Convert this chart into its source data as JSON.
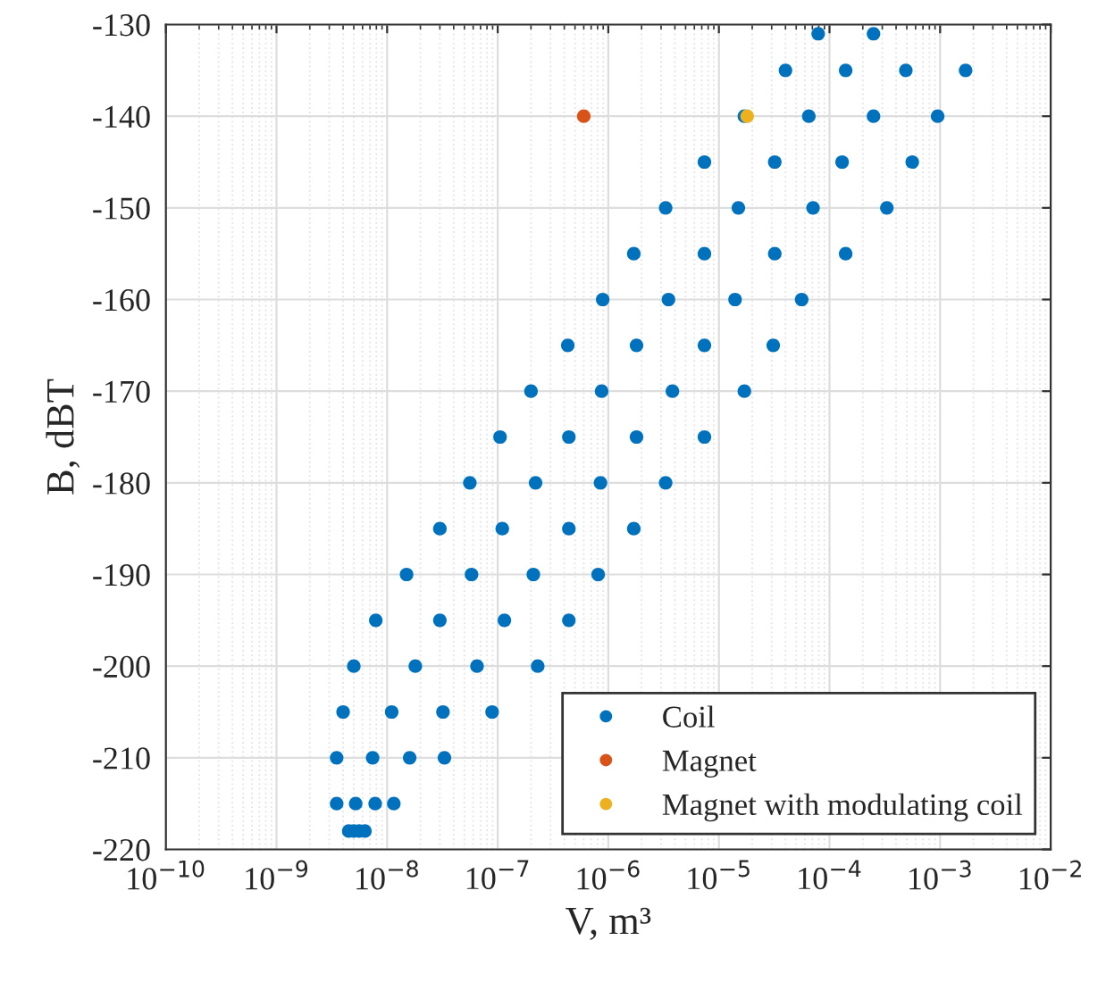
{
  "chart_data": {
    "type": "scatter",
    "xlabel": "V, m³",
    "ylabel": "B, dBT",
    "log": "x",
    "grid": true,
    "legend": "bottom right",
    "marker": "circle",
    "xlim": [
      1e-10,
      0.01
    ],
    "xticks": [
      {
        "value": 1e-10,
        "label": "10$^{−10}$"
      },
      {
        "value": 1e-09,
        "label": "10$^{−9}$"
      },
      {
        "value": 1e-08,
        "label": "10$^{−8}$"
      },
      {
        "value": 1e-07,
        "label": "10$^{−7}$"
      },
      {
        "value": 1e-06,
        "label": "10$^{−6}$"
      },
      {
        "value": 1e-05,
        "label": "10$^{−5}$"
      },
      {
        "value": 0.0001,
        "label": "10$^{−4}$"
      },
      {
        "value": 0.001,
        "label": "10$^{−3}$"
      },
      {
        "value": 0.01,
        "label": "10$^{−2}$"
      }
    ],
    "ylim": [
      -220,
      -130
    ],
    "yticks": [
      -220,
      -210,
      -200,
      -190,
      -180,
      -170,
      -160,
      -150,
      -140,
      -130
    ],
    "series": [
      {
        "name": "Coil",
        "color": "#0072bd",
        "x": [
          4.5e-09,
          5e-09,
          5.6e-09,
          6.3e-09,
          3.5e-09,
          5.2e-09,
          7.8e-09,
          1.15e-08,
          3.5e-09,
          7.4e-09,
          1.6e-08,
          3.3e-08,
          4e-09,
          1.1e-08,
          3.2e-08,
          8.9e-08,
          5e-09,
          1.8e-08,
          6.5e-08,
          2.3e-07,
          7.9e-09,
          3e-08,
          1.15e-07,
          4.4e-07,
          1.5e-08,
          5.8e-08,
          2.1e-07,
          8.1e-07,
          3e-08,
          1.1e-07,
          4.4e-07,
          1.7e-06,
          5.6e-08,
          2.2e-07,
          8.5e-07,
          3.3e-06,
          1.05e-07,
          4.4e-07,
          1.8e-06,
          7.4e-06,
          2e-07,
          8.7e-07,
          3.8e-06,
          1.7e-05,
          4.3e-07,
          1.8e-06,
          7.4e-06,
          3.1e-05,
          8.9e-07,
          3.5e-06,
          1.4e-05,
          5.6e-05,
          1.7e-06,
          7.4e-06,
          3.2e-05,
          0.00014,
          3.3e-06,
          1.5e-05,
          7.1e-05,
          0.00033,
          7.4e-06,
          3.2e-05,
          0.00013,
          0.00056,
          1.7e-05,
          6.5e-05,
          0.00025,
          0.00095,
          4e-05,
          0.00014,
          0.00049,
          0.0017,
          7.9e-05,
          0.00025
        ],
        "values": [
          -218,
          -218,
          -218,
          -218,
          -215,
          -215,
          -215,
          -215,
          -210,
          -210,
          -210,
          -210,
          -205,
          -205,
          -205,
          -205,
          -200,
          -200,
          -200,
          -200,
          -195,
          -195,
          -195,
          -195,
          -190,
          -190,
          -190,
          -190,
          -185,
          -185,
          -185,
          -185,
          -180,
          -180,
          -180,
          -180,
          -175,
          -175,
          -175,
          -175,
          -170,
          -170,
          -170,
          -170,
          -165,
          -165,
          -165,
          -165,
          -160,
          -160,
          -160,
          -160,
          -155,
          -155,
          -155,
          -155,
          -150,
          -150,
          -150,
          -150,
          -145,
          -145,
          -145,
          -145,
          -140,
          -140,
          -140,
          -140,
          -135,
          -135,
          -135,
          -135,
          -131,
          -131
        ]
      },
      {
        "name": "Magnet",
        "color": "#d95319",
        "x": [
          6e-07
        ],
        "values": [
          -140
        ]
      },
      {
        "name": "Magnet with modulating coil",
        "color": "#edb120",
        "x": [
          1.8e-05
        ],
        "values": [
          -140
        ]
      }
    ]
  }
}
